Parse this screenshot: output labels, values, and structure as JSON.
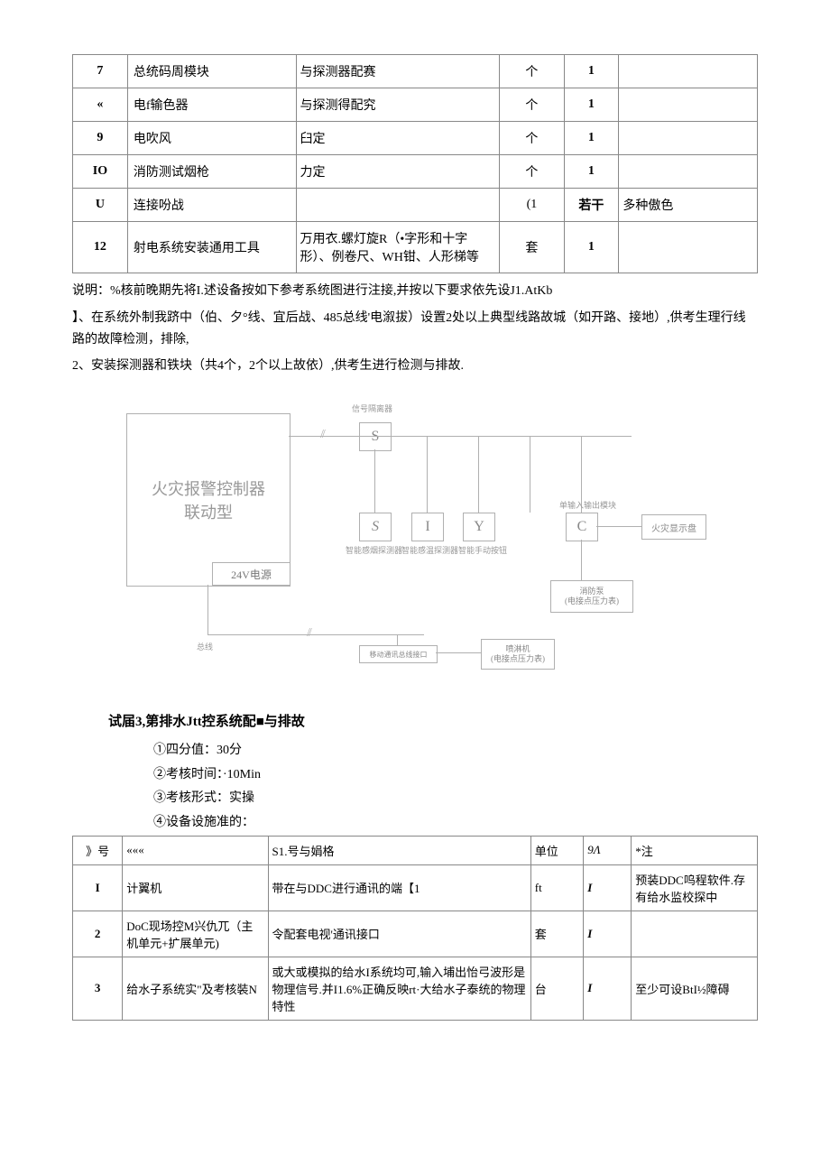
{
  "table1": {
    "rows": [
      {
        "no": "7",
        "name": "总统码周模块",
        "spec": "与探测器配赛",
        "unit": "个",
        "qty": "1",
        "note": ""
      },
      {
        "no": "«",
        "name": "电f输色器",
        "spec": "与探测得配究",
        "unit": "个",
        "qty": "1",
        "note": ""
      },
      {
        "no": "9",
        "name": "电吹风",
        "spec": "臼定",
        "unit": "个",
        "qty": "1",
        "note": ""
      },
      {
        "no": "IO",
        "name": "消防测试烟枪",
        "spec": "力定",
        "unit": "个",
        "qty": "1",
        "note": ""
      },
      {
        "no": "U",
        "name": "连接吩战",
        "spec": "",
        "unit": "(1",
        "qty": "若干",
        "note": "多种傲色"
      },
      {
        "no": "12",
        "name": "射电系统安装通用工具",
        "spec": "万用衣.螺灯旋R（•字形和十字形）、例卷尺、WH钳、人形梯等",
        "unit": "套",
        "qty": "1",
        "note": ""
      }
    ]
  },
  "paragraphs": {
    "p1": "说明：%核前晚期先将I.述设备按如下参考系统图进行注接,并按以下要求依先设J1.AtKb",
    "p2": "】、在系统外制我跻中（伯、夕°线、宜后战、485总线'电溆拔）设置2处以上典型线路故城（如开路、接地）,供考生理行线路的故障检测，排除,",
    "p3": "2、安装探测器和铁块（共4个，2个以上故依）,供考生进行检测与排故."
  },
  "diagram": {
    "controller_l1": "火灾报警控制器",
    "controller_l2": "联动型",
    "power": "24V电源",
    "isolator": "信号隔离器",
    "node_S": "S",
    "node_S2": "S",
    "node_I": "I",
    "node_Y": "Y",
    "node_C": "C",
    "label_det1": "智能感烟探测器",
    "label_det2": "智能感温探测器",
    "label_det3": "智能手动按钮",
    "label_io": "单输入输出模块",
    "label_display": "火灾显示盘",
    "label_pump_l1": "消防泵",
    "label_pump_l2": "(电接点压力表)",
    "label_bus": "总线",
    "label_port": "移动通讯总线接口",
    "label_spray_l1": "喷淋机",
    "label_spray_l2": "(电接点压力表)"
  },
  "section3": {
    "title": "试届3,第排水Jtt控系统配■与排故",
    "item1": "①四分值：30分",
    "item2": "②考核时间：·10Min",
    "item3": "③考核形式：实操",
    "item4": "④设备设施准的："
  },
  "table2": {
    "header": {
      "c0": "》号",
      "c1": "«««",
      "c2": "S1.号与娟格",
      "c3": "单位",
      "c4": "9Λ",
      "c5": "*注"
    },
    "rows": [
      {
        "no": "I",
        "name": "计翼机",
        "spec": "带在与DDC进行通讯的端【1",
        "unit": "ft",
        "qty": "I",
        "note": "预装DDC呜程软件.存有给水监校探中"
      },
      {
        "no": "2",
        "name": "DoC现场控M兴仇兀（主机单元+扩展单元)",
        "spec": "令配套电视'通讯接口",
        "unit": "套",
        "qty": "I",
        "note": ""
      },
      {
        "no": "3",
        "name": "给水子系统实\"及考核裝N",
        "spec": "或大或模拟的给水I系统均可,输入埔出怡弓波形是物理信号.并I1.6%正确反映rt·大给水子泰统的物理特性",
        "unit": "台",
        "qty": "I",
        "note": "至少可设BtI½障碍"
      }
    ]
  }
}
